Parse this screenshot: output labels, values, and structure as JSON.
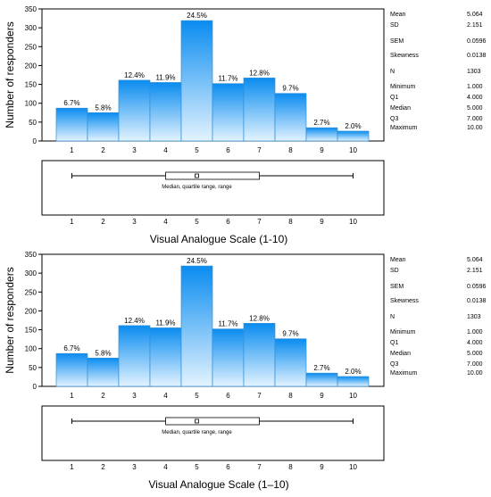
{
  "chart_data": [
    {
      "type": "bar",
      "title": "",
      "xlabel": "Visual Analogue Scale (1-10)",
      "ylabel": "Number of responders",
      "ylim": [
        0,
        350
      ],
      "yticks": [
        "0",
        "50",
        "100",
        "150",
        "200",
        "250",
        "300",
        "350"
      ],
      "categories": [
        "1",
        "2",
        "3",
        "4",
        "5",
        "6",
        "7",
        "8",
        "9",
        "10"
      ],
      "values": [
        87,
        75,
        161,
        155,
        319,
        152,
        167,
        126,
        35,
        26
      ],
      "data_labels": [
        "6.7%",
        "5.8%",
        "12.4%",
        "11.9%",
        "24.5%",
        "11.7%",
        "12.8%",
        "9.7%",
        "2.7%",
        "2.0%"
      ],
      "grid": false,
      "stats": [
        {
          "label": "Mean",
          "value": "5.064"
        },
        {
          "label": "SD",
          "value": "2.151"
        },
        {
          "label": "SEM",
          "value": "0.0596"
        },
        {
          "label": "Skewness",
          "value": "0.0138"
        },
        {
          "label": "N",
          "value": "1303"
        },
        {
          "label": "Minimum",
          "value": "1.000"
        },
        {
          "label": "Q1",
          "value": "4.000"
        },
        {
          "label": "Median",
          "value": "5.000"
        },
        {
          "label": "Q3",
          "value": "7.000"
        },
        {
          "label": "Maximum",
          "value": "10.00"
        }
      ],
      "boxplot": {
        "min": 1,
        "q1": 4,
        "median": 5,
        "q3": 7,
        "max": 10,
        "caption": "Median, quartile range, range"
      }
    },
    {
      "type": "bar",
      "title": "",
      "xlabel": "Visual Analogue Scale (1–10)",
      "ylabel": "Number of responders",
      "ylim": [
        0,
        350
      ],
      "yticks": [
        "0",
        "50",
        "100",
        "150",
        "200",
        "250",
        "300",
        "350"
      ],
      "categories": [
        "1",
        "2",
        "3",
        "4",
        "5",
        "6",
        "7",
        "8",
        "9",
        "10"
      ],
      "values": [
        87,
        75,
        161,
        155,
        319,
        152,
        167,
        126,
        35,
        26
      ],
      "data_labels": [
        "6.7%",
        "5.8%",
        "12.4%",
        "11.9%",
        "24.5%",
        "11.7%",
        "12.8%",
        "9.7%",
        "2.7%",
        "2.0%"
      ],
      "grid": false,
      "stats": [
        {
          "label": "Mean",
          "value": "5.064"
        },
        {
          "label": "SD",
          "value": "2.151"
        },
        {
          "label": "SEM",
          "value": "0.0596"
        },
        {
          "label": "Skewness",
          "value": "0.0138"
        },
        {
          "label": "N",
          "value": "1303"
        },
        {
          "label": "Minimum",
          "value": "1.000"
        },
        {
          "label": "Q1",
          "value": "4.000"
        },
        {
          "label": "Median",
          "value": "5.000"
        },
        {
          "label": "Q3",
          "value": "7.000"
        },
        {
          "label": "Maximum",
          "value": "10.00"
        }
      ],
      "boxplot": {
        "min": 1,
        "q1": 4,
        "median": 5,
        "q3": 7,
        "max": 10,
        "caption": "Median, quartile range, range"
      }
    }
  ]
}
